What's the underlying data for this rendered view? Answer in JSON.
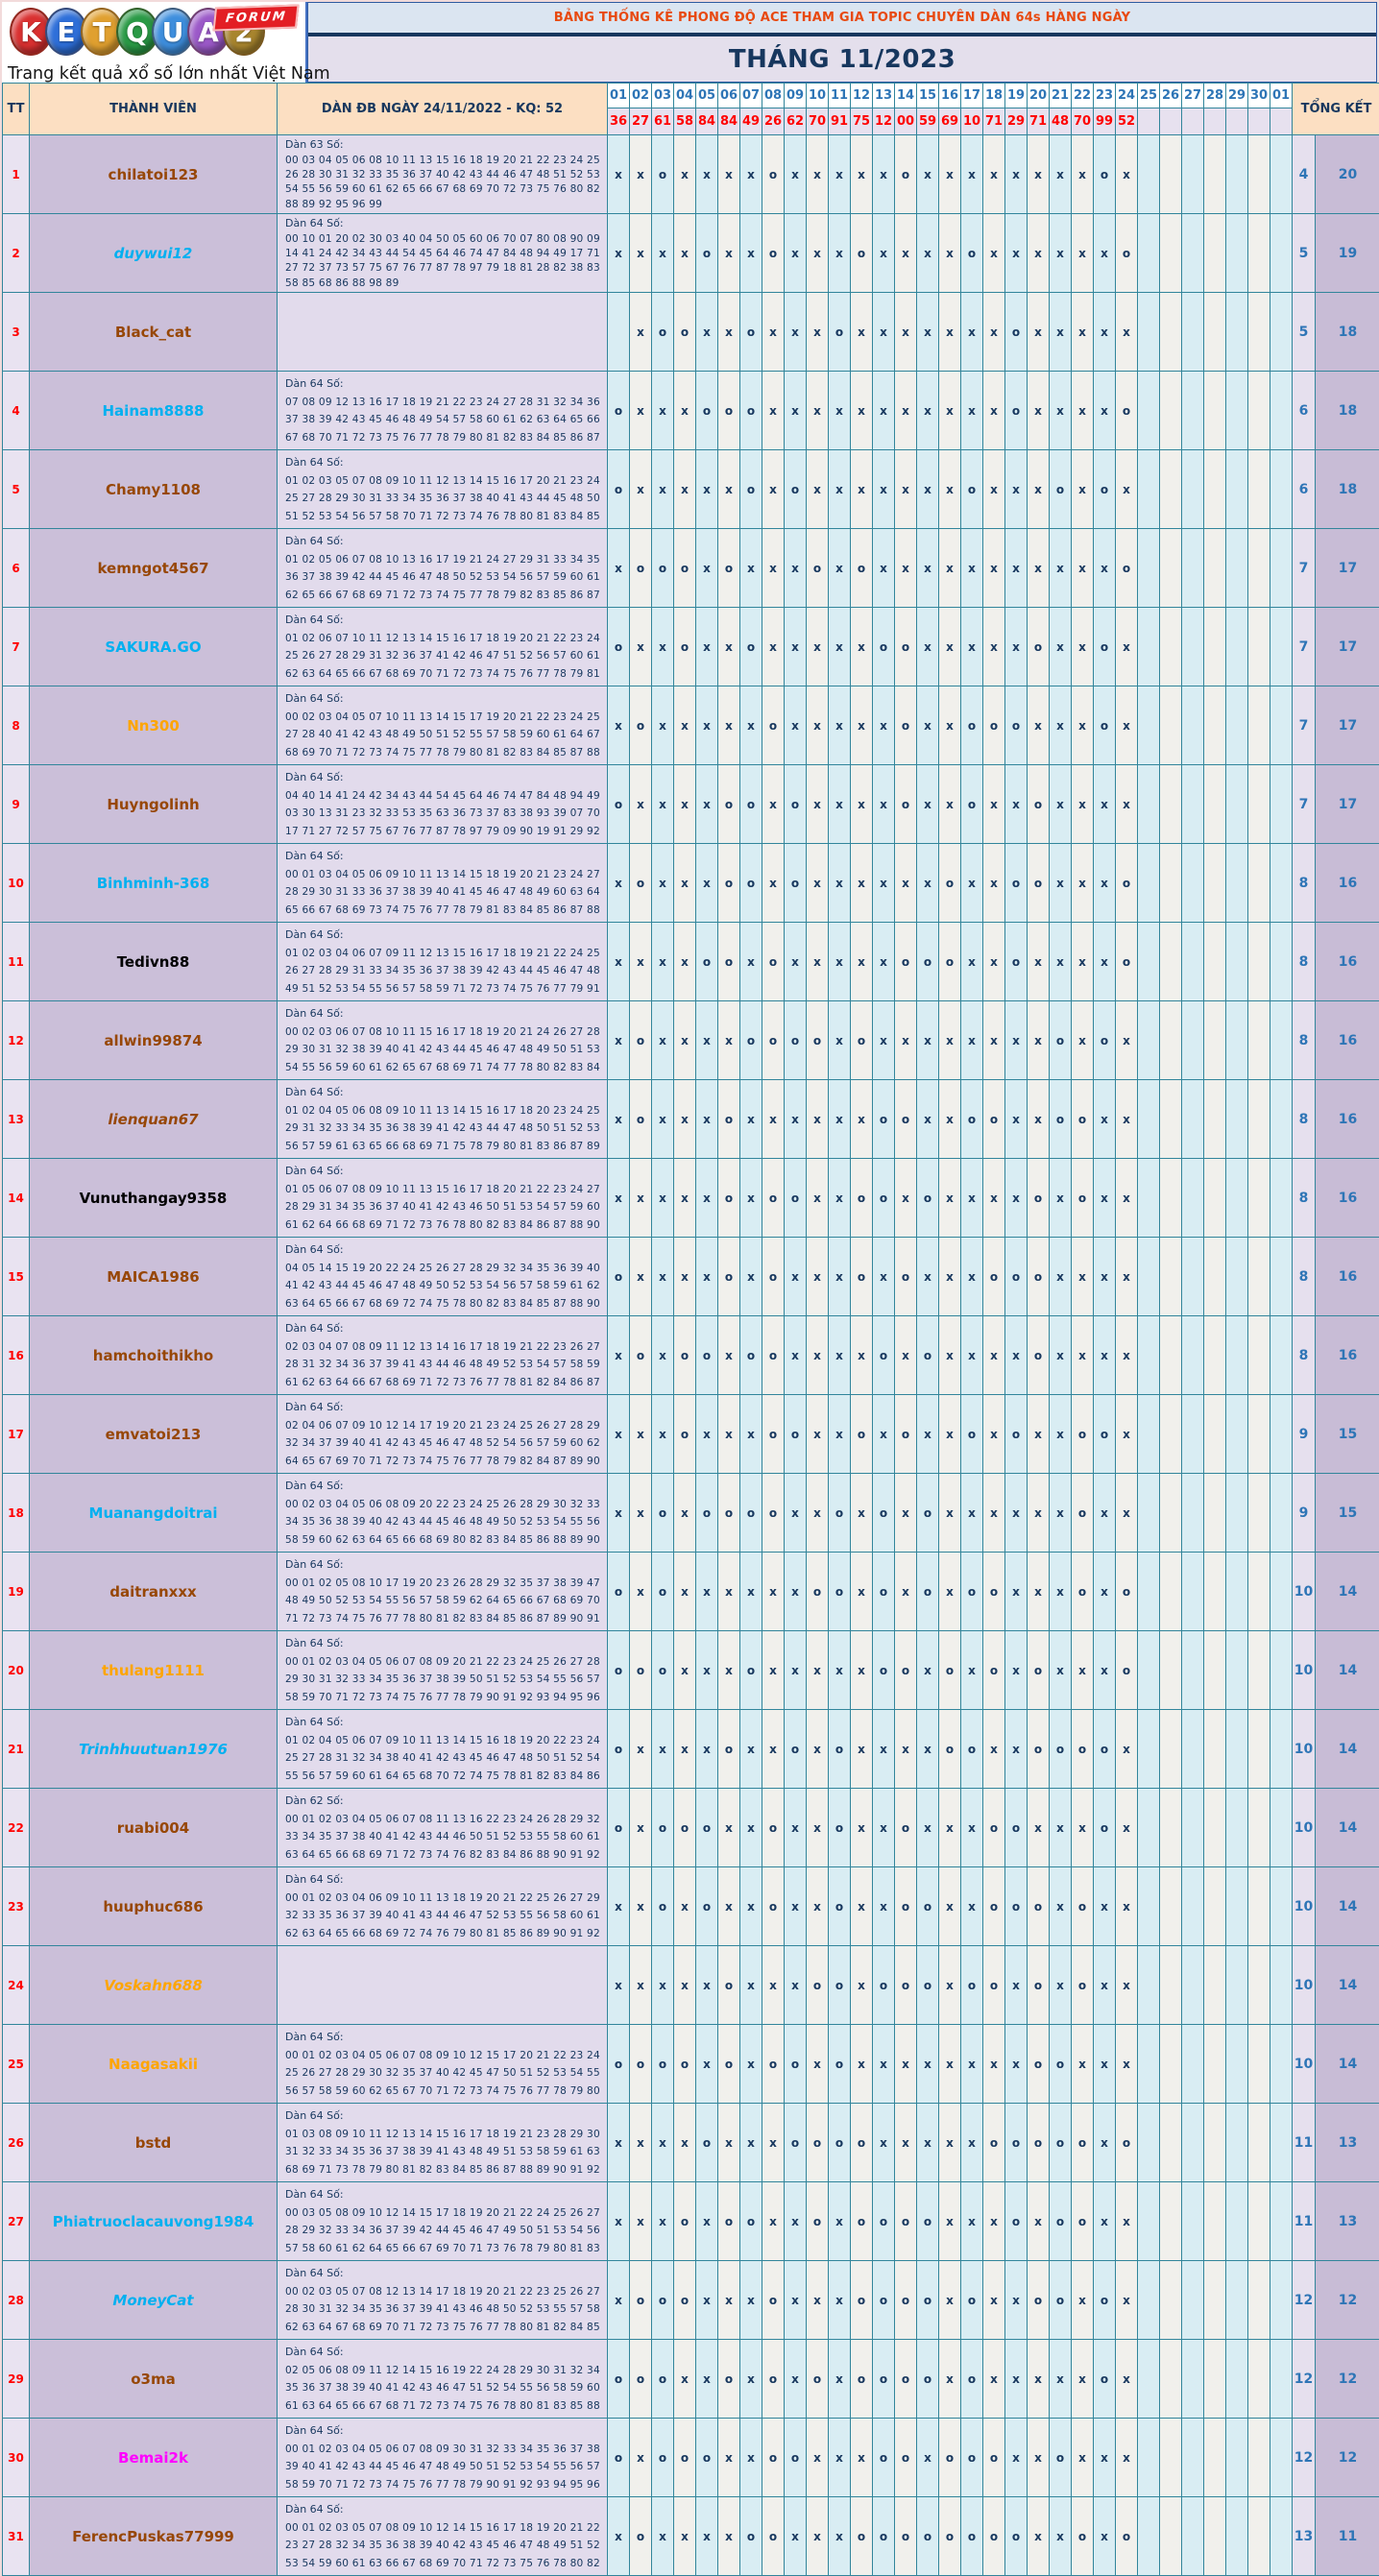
{
  "logo": {
    "letters": [
      {
        "ch": "K",
        "color": "#D93030"
      },
      {
        "ch": "E",
        "color": "#2E6FD9"
      },
      {
        "ch": "T",
        "color": "#E0A030"
      },
      {
        "ch": "Q",
        "color": "#2A9A46"
      },
      {
        "ch": "U",
        "color": "#3E8EDD"
      },
      {
        "ch": "A",
        "color": "#9B59C8"
      },
      {
        "ch": "2",
        "color": "#A8852E"
      }
    ],
    "badge": "FORUM",
    "tagline": "Trang kết quả xổ số lớn nhất Việt Nam"
  },
  "banner": {
    "title": "BẢNG THỐNG KÊ PHONG ĐỘ ACE THAM GIA TOPIC CHUYÊN DÀN 64s HÀNG NGÀY",
    "month": "THÁNG 11/2023"
  },
  "colors": {
    "grid": "#31859B",
    "page_bg": "#F2DBDB",
    "header_peach": "#FCDFC2",
    "day_number_blue": "#2E75B6",
    "kq_red": "#FF0000",
    "mark_navy": "#17375E",
    "name_brown": "#974706",
    "name_cyan": "#00B0F0",
    "name_orange": "#FFA500",
    "name_magenta": "#FF00FF"
  },
  "table": {
    "header": {
      "tt": "TT",
      "member": "THÀNH VIÊN",
      "dan": "DÀN ĐB NGÀY 24/11/2022 - KQ: 52",
      "total": "TỔNG KẾT"
    },
    "days": [
      "01",
      "02",
      "03",
      "04",
      "05",
      "06",
      "07",
      "08",
      "09",
      "10",
      "11",
      "12",
      "13",
      "14",
      "15",
      "16",
      "17",
      "18",
      "19",
      "20",
      "21",
      "22",
      "23",
      "24",
      "25",
      "26",
      "27",
      "28",
      "29",
      "30",
      "01"
    ],
    "kq": [
      "36",
      "27",
      "61",
      "58",
      "84",
      "84",
      "49",
      "26",
      "62",
      "70",
      "91",
      "75",
      "12",
      "00",
      "59",
      "69",
      "10",
      "71",
      "29",
      "71",
      "48",
      "70",
      "99",
      "52"
    ],
    "rows": [
      {
        "tt": "1",
        "name": "chilatoi123",
        "color": "#974706",
        "italic": false,
        "label": "Dàn 63 Số:",
        "lines": [
          "00 03 04 05 06 08 10 11 13 15 16 18 19 20 21 22 23 24 25",
          "26 28 30 31 32 33 35 36 37 40 42 43 44 46 47 48 51 52 53",
          "54 55 56 59 60 61 62 65 66 67 68 69 70 72 73 75 76 80 82",
          "88 89 92 95 96 99"
        ],
        "marks": "xxoxxxxoxxxxxoxxxxxxxxox",
        "o": "4",
        "x": "20"
      },
      {
        "tt": "2",
        "name": "duywui12",
        "color": "#00B0F0",
        "italic": true,
        "label": "Dàn 64 Số:",
        "lines": [
          "00 10 01 20 02 30 03 40 04 50 05 60 06 70 07 80 08 90 09",
          "14 41 24 42 34 43 44 54 45 64 46 74 47 84 48 94 49 17 71",
          "27 72 37 73 57 75 67 76 77 87 78 97 79 18 81 28 82 38 83",
          "58 85 68 86 88 98 89"
        ],
        "marks": "xxxxoxxoxxxoxxxxoxxxxxxo",
        "o": "5",
        "x": "19"
      },
      {
        "tt": "3",
        "name": "Black_cat",
        "color": "#974706",
        "italic": false,
        "label": "",
        "lines": [],
        "marks": "-xooxxoxxxoxxxxxxxoxxxxx",
        "o": "5",
        "x": "18"
      },
      {
        "tt": "4",
        "name": "Hainam8888",
        "color": "#00B0F0",
        "italic": false,
        "label": "Dàn 64 Số:",
        "lines": [
          "07 08 09 12 13 16 17 18 19 21 22 23 24 27 28 31 32 34 36",
          "37 38 39 42 43 45 46 48 49 54 57 58 60 61 62 63 64 65 66",
          "67 68 70 71 72 73 75 76 77 78 79 80 81 82 83 84 85 86 87"
        ],
        "marks": "oxxxoooxxxxxxxxxxxoxxxxo",
        "o": "6",
        "x": "18"
      },
      {
        "tt": "5",
        "name": "Chamy1108",
        "color": "#974706",
        "italic": false,
        "label": "Dàn 64 Số:",
        "lines": [
          "01 02 03 05 07 08 09 10 11 12 13 14 15 16 17 20 21 23 24",
          "25 27 28 29 30 31 33 34 35 36 37 38 40 41 43 44 45 48 50",
          "51 52 53 54 56 57 58 70 71 72 73 74 76 78 80 81 83 84 85"
        ],
        "marks": "oxxxxxoxoxxxxxxxoxxxoxox",
        "o": "6",
        "x": "18"
      },
      {
        "tt": "6",
        "name": "kemngot4567",
        "color": "#974706",
        "italic": false,
        "label": "Dàn 64 Số:",
        "lines": [
          "01 02 05 06 07 08 10 13 16 17 19 21 24 27 29 31 33 34 35",
          "36 37 38 39 42 44 45 46 47 48 50 52 53 54 56 57 59 60 61",
          "62 65 66 67 68 69 71 72 73 74 75 77 78 79 82 83 85 86 87"
        ],
        "marks": "xoooxoxxxoxoxxxxxxxxxxxo",
        "o": "7",
        "x": "17"
      },
      {
        "tt": "7",
        "name": "SAKURA.GO",
        "color": "#00B0F0",
        "italic": false,
        "label": "Dàn 64 Số:",
        "lines": [
          "01 02 06 07 10 11 12 13 14 15 16 17 18 19 20 21 22 23 24",
          "25 26 27 28 29 31 32 36 37 41 42 46 47 51 52 56 57 60 61",
          "62 63 64 65 66 67 68 69 70 71 72 73 74 75 76 77 78 79 81"
        ],
        "marks": "oxxoxxoxxxxxooxxxxxoxxox",
        "o": "7",
        "x": "17"
      },
      {
        "tt": "8",
        "name": "Nn300",
        "color": "#FFA500",
        "italic": false,
        "label": "Dàn 64 Số:",
        "lines": [
          "00 02 03 04 05 07 10 11 13 14 15 17 19 20 21 22 23 24 25",
          "27 28 40 41 42 43 48 49 50 51 52 55 57 58 59 60 61 64 67",
          "68 69 70 71 72 73 74 75 77 78 79 80 81 82 83 84 85 87 88"
        ],
        "marks": "xoxxxxxoxxxxxoxxoooxxxox",
        "o": "7",
        "x": "17"
      },
      {
        "tt": "9",
        "name": "Huyngolinh",
        "color": "#974706",
        "italic": false,
        "label": "Dàn 64 Số:",
        "lines": [
          "04 40 14 41 24 42 34 43 44 54 45 64 46 74 47 84 48 94 49",
          "03 30 13 31 23 32 33 53 35 63 36 73 37 83 38 93 39 07 70",
          "17 71 27 72 57 75 67 76 77 87 78 97 79 09 90 19 91 29 92"
        ],
        "marks": "oxxxxooxoxxxxoxxoxxoxxxx",
        "o": "7",
        "x": "17"
      },
      {
        "tt": "10",
        "name": "Binhminh-368",
        "color": "#00B0F0",
        "italic": false,
        "label": "Dàn 64 Số:",
        "lines": [
          "00 01 03 04 05 06 09 10 11 13 14 15 18 19 20 21 23 24 27",
          "28 29 30 31 33 36 37 38 39 40 41 45 46 47 48 49 60 63 64",
          "65 66 67 68 69 73 74 75 76 77 78 79 81 83 84 85 86 87 88"
        ],
        "marks": "xoxxxooxoxxxxxxoxxooxxxo",
        "o": "8",
        "x": "16"
      },
      {
        "tt": "11",
        "name": "Tedivn88",
        "color": "#000000",
        "italic": false,
        "label": "Dàn 64 Số:",
        "lines": [
          "01 02 03 04 06 07 09 11 12 13 15 16 17 18 19 21 22 24 25",
          "26 27 28 29 31 33 34 35 36 37 38 39 42 43 44 45 46 47 48",
          "49 51 52 53 54 55 56 57 58 59 71 72 73 74 75 76 77 79 91"
        ],
        "marks": "xxxxooxoxxxxxoooxxoxxxxo",
        "o": "8",
        "x": "16"
      },
      {
        "tt": "12",
        "name": "allwin99874",
        "color": "#974706",
        "italic": false,
        "label": "Dàn 64 Số:",
        "lines": [
          "00 02 03 06 07 08 10 11 15 16 17 18 19 20 21 24 26 27 28",
          "29 30 31 32 38 39 40 41 42 43 44 45 46 47 48 49 50 51 53",
          "54 55 56 59 60 61 62 65 67 68 69 71 74 77 78 80 82 83 84"
        ],
        "marks": "xoxxxxooooxoxxxxxxxxoxox",
        "o": "8",
        "x": "16"
      },
      {
        "tt": "13",
        "name": "lienquan67",
        "color": "#974706",
        "italic": true,
        "label": "Dàn 64 Số:",
        "lines": [
          "01 02 04 05 06 08 09 10 11 13 14 15 16 17 18 20 23 24 25",
          "29 31 32 33 34 35 36 38 39 41 42 43 44 47 48 50 51 52 53",
          "56 57 59 61 63 65 66 68 69 71 75 78 79 80 81 83 86 87 89"
        ],
        "marks": "xoxxxoxxxxxxooxxooxxooxx",
        "o": "8",
        "x": "16"
      },
      {
        "tt": "14",
        "name": "Vunuthangay9358",
        "color": "#000000",
        "italic": false,
        "label": "Dàn 64 Số:",
        "lines": [
          "01 05 06 07 08 09 10 11 13 15 16 17 18 20 21 22 23 24 27",
          "28 29 31 34 35 36 37 40 41 42 43 46 50 51 53 54 57 59 60",
          "61 62 64 66 68 69 71 72 73 76 78 80 82 83 84 86 87 88 90"
        ],
        "marks": "xxxxxoxooxxooxoxxxxoxoxx",
        "o": "8",
        "x": "16"
      },
      {
        "tt": "15",
        "name": "MAICA1986",
        "color": "#974706",
        "italic": false,
        "label": "Dàn 64 Số:",
        "lines": [
          "04 05 14 15 19 20 22 24 25 26 27 28 29 32 34 35 36 39 40",
          "41 42 43 44 45 46 47 48 49 50 52 53 54 56 57 58 59 61 62",
          "63 64 65 66 67 68 69 72 74 75 78 80 82 83 84 85 87 88 90"
        ],
        "marks": "oxxxxoxoxxxoxoxxxoooxxxx",
        "o": "8",
        "x": "16"
      },
      {
        "tt": "16",
        "name": "hamchoithikho",
        "color": "#974706",
        "italic": false,
        "label": "Dàn 64 Số:",
        "lines": [
          "02 03 04 07 08 09 11 12 13 14 16 17 18 19 21 22 23 26 27",
          "28 31 32 34 36 37 39 41 43 44 46 48 49 52 53 54 57 58 59",
          "61 62 63 64 66 67 68 69 71 72 73 76 77 78 81 82 84 86 87"
        ],
        "marks": "xoxooxooxxxxoxoxxxxoxxxx",
        "o": "8",
        "x": "16"
      },
      {
        "tt": "17",
        "name": "emvatoi213",
        "color": "#974706",
        "italic": false,
        "label": "Dàn 64 Số:",
        "lines": [
          "02 04 06 07 09 10 12 14 17 19 20 21 23 24 25 26 27 28 29",
          "32 34 37 39 40 41 42 43 45 46 47 48 52 54 56 57 59 60 62",
          "64 65 67 69 70 71 72 73 74 75 76 77 78 79 82 84 87 89 90"
        ],
        "marks": "xxxoxxxooxxoxoxxoxoxxoox",
        "o": "9",
        "x": "15"
      },
      {
        "tt": "18",
        "name": "Muanangdoitrai",
        "color": "#00B0F0",
        "italic": false,
        "label": "Dàn 64 Số:",
        "lines": [
          "00 02 03 04 05 06 08 09 20 22 23 24 25 26 28 29 30 32 33",
          "34 35 36 38 39 40 42 43 44 45 46 48 49 50 52 53 54 55 56",
          "58 59 60 62 63 64 65 66 68 69 80 82 83 84 85 86 88 89 90"
        ],
        "marks": "xxoxooooxxoxoxoxxxxxxoxx",
        "o": "9",
        "x": "15"
      },
      {
        "tt": "19",
        "name": "daitranxxx",
        "color": "#974706",
        "italic": false,
        "label": "Dàn 64 Số:",
        "lines": [
          "00 01 02 05 08 10 17 19 20 23 26 28 29 32 35 37 38 39 47",
          "48 49 50 52 53 54 55 56 57 58 59 62 64 65 66 67 68 69 70",
          "71 72 73 74 75 76 77 78 80 81 82 83 84 85 86 87 89 90 91"
        ],
        "marks": "oxoxxxxxxooxoxoxooxxxoxo",
        "o": "10",
        "x": "14"
      },
      {
        "tt": "20",
        "name": "thulang1111",
        "color": "#FFA500",
        "italic": false,
        "label": "Dàn 64 Số:",
        "lines": [
          "00 01 02 03 04 05 06 07 08 09 20 21 22 23 24 25 26 27 28",
          "29 30 31 32 33 34 35 36 37 38 39 50 51 52 53 54 55 56 57",
          "58 59 70 71 72 73 74 75 76 77 78 79 90 91 92 93 94 95 96"
        ],
        "marks": "oooxxxoxxxxxooxoxoxoxxxo",
        "o": "10",
        "x": "14"
      },
      {
        "tt": "21",
        "name": "Trinhhuutuan1976",
        "color": "#00B0F0",
        "italic": true,
        "label": "Dàn 64 Số:",
        "lines": [
          "01 02 04 05 06 07 09 10 11 13 14 15 16 18 19 20 22 23 24",
          "25 27 28 31 32 34 38 40 41 42 43 45 46 47 48 50 51 52 54",
          "55 56 57 59 60 61 64 65 68 70 72 74 75 78 81 82 83 84 86"
        ],
        "marks": "oxxxxoxxoxoxxxxooxxoooox",
        "o": "10",
        "x": "14"
      },
      {
        "tt": "22",
        "name": "ruabi004",
        "color": "#974706",
        "italic": false,
        "label": "Dàn 62 Số:",
        "lines": [
          "00 01 02 03 04 05 06 07 08 11 13 16 22 23 24 26 28 29 32",
          "33 34 35 37 38 40 41 42 43 44 46 50 51 52 53 55 58 60 61",
          "63 64 65 66 68 69 71 72 73 74 76 82 83 84 86 88 90 91 92"
        ],
        "marks": "oxoooxxoxxoxxoxxxooxxxox",
        "o": "10",
        "x": "14"
      },
      {
        "tt": "23",
        "name": "huuphuc686",
        "color": "#974706",
        "italic": false,
        "label": "Dàn 64 Số:",
        "lines": [
          "00 01 02 03 04 06 09 10 11 13 18 19 20 21 22 25 26 27 29",
          "32 33 35 36 37 39 40 41 43 44 46 47 52 53 55 56 58 60 61",
          "62 63 64 65 66 68 69 72 74 76 79 80 81 85 86 89 90 91 92"
        ],
        "marks": "xxoxoxxoxxoxxooxxoooxoxx",
        "o": "10",
        "x": "14"
      },
      {
        "tt": "24",
        "name": "Voskahn688",
        "color": "#FFA500",
        "italic": true,
        "label": "",
        "lines": [],
        "marks": "xxxxxoxxxooxoooxooxoxoxx",
        "o": "10",
        "x": "14"
      },
      {
        "tt": "25",
        "name": "Naagasakii",
        "color": "#FFA500",
        "italic": false,
        "label": "Dàn 64 Số:",
        "lines": [
          "00 01 02 03 04 05 06 07 08 09 10 12 15 17 20 21 22 23 24",
          "25 26 27 28 29 30 32 35 37 40 42 45 47 50 51 52 53 54 55",
          "56 57 58 59 60 62 65 67 70 71 72 73 74 75 76 77 78 79 80"
        ],
        "marks": "ooooxoxooxoxxxxxxxxooxxx",
        "o": "10",
        "x": "14"
      },
      {
        "tt": "26",
        "name": "bstd",
        "color": "#974706",
        "italic": false,
        "label": "Dàn 64 Số:",
        "lines": [
          "01 03 08 09 10 11 12 13 14 15 16 17 18 19 21 23 28 29 30",
          "31 32 33 34 35 36 37 38 39 41 43 48 49 51 53 58 59 61 63",
          "68 69 71 73 78 79 80 81 82 83 84 85 86 87 88 89 90 91 92"
        ],
        "marks": "xxxxoxxxooooxxxxxoooooxo",
        "o": "11",
        "x": "13"
      },
      {
        "tt": "27",
        "name": "Phiatruoclacauvong1984",
        "color": "#00B0F0",
        "italic": false,
        "label": "Dàn 64 Số:",
        "lines": [
          "00 03 05 08 09 10 12 14 15 17 18 19 20 21 22 24 25 26 27",
          "28 29 32 33 34 36 37 39 42 44 45 46 47 49 50 51 53 54 56",
          "57 58 60 61 62 64 65 66 67 69 70 71 73 76 78 79 80 81 83"
        ],
        "marks": "xxxoxooxxoxooooxxxoxooxx",
        "o": "11",
        "x": "13"
      },
      {
        "tt": "28",
        "name": "MoneyCat",
        "color": "#00B0F0",
        "italic": true,
        "label": "Dàn 64 Số:",
        "lines": [
          "00 02 03 05 07 08 12 13 14 17 18 19 20 21 22 23 25 26 27",
          "28 30 31 32 34 35 36 37 39 41 43 46 48 50 52 53 55 57 58",
          "62 63 64 67 68 69 70 71 72 73 75 76 77 78 80 81 82 84 85"
        ],
        "marks": "xoooxxxoxxxooooxoxxooxox",
        "o": "12",
        "x": "12"
      },
      {
        "tt": "29",
        "name": "o3ma",
        "color": "#974706",
        "italic": false,
        "label": "Dàn 64 Số:",
        "lines": [
          "02 05 06 08 09 11 12 14 15 16 19 22 24 28 29 30 31 32 34",
          "35 36 37 38 39 40 41 42 43 46 47 51 52 54 55 56 58 59 60",
          "61 63 64 65 66 67 68 71 72 73 74 75 76 78 80 81 83 85 88"
        ],
        "marks": "oooxxoxoxoxooooxoxxxxxox",
        "o": "12",
        "x": "12"
      },
      {
        "tt": "30",
        "name": "Bemai2k",
        "color": "#FF00FF",
        "italic": false,
        "label": "Dàn 64 Số:",
        "lines": [
          "00 01 02 03 04 05 06 07 08 09 30 31 32 33 34 35 36 37 38",
          "39 40 41 42 43 44 45 46 47 48 49 50 51 52 53 54 55 56 57",
          "58 59 70 71 72 73 74 75 76 77 78 79 90 91 92 93 94 95 96"
        ],
        "marks": "oxoooxxooxxxooxoooxxoxxx",
        "o": "12",
        "x": "12"
      },
      {
        "tt": "31",
        "name": "FerencPuskas77999",
        "color": "#974706",
        "italic": false,
        "label": "Dàn 64 Số:",
        "lines": [
          "00 01 02 03 05 07 08 09 10 12 14 15 16 17 18 19 20 21 22",
          "23 27 28 32 34 35 36 38 39 40 42 43 45 46 47 48 49 51 52",
          "53 54 59 60 61 63 66 67 68 69 70 71 72 73 75 76 78 80 82"
        ],
        "marks": "xoxxxxooxxxooooooooxxoxo",
        "o": "13",
        "x": "11"
      }
    ]
  }
}
